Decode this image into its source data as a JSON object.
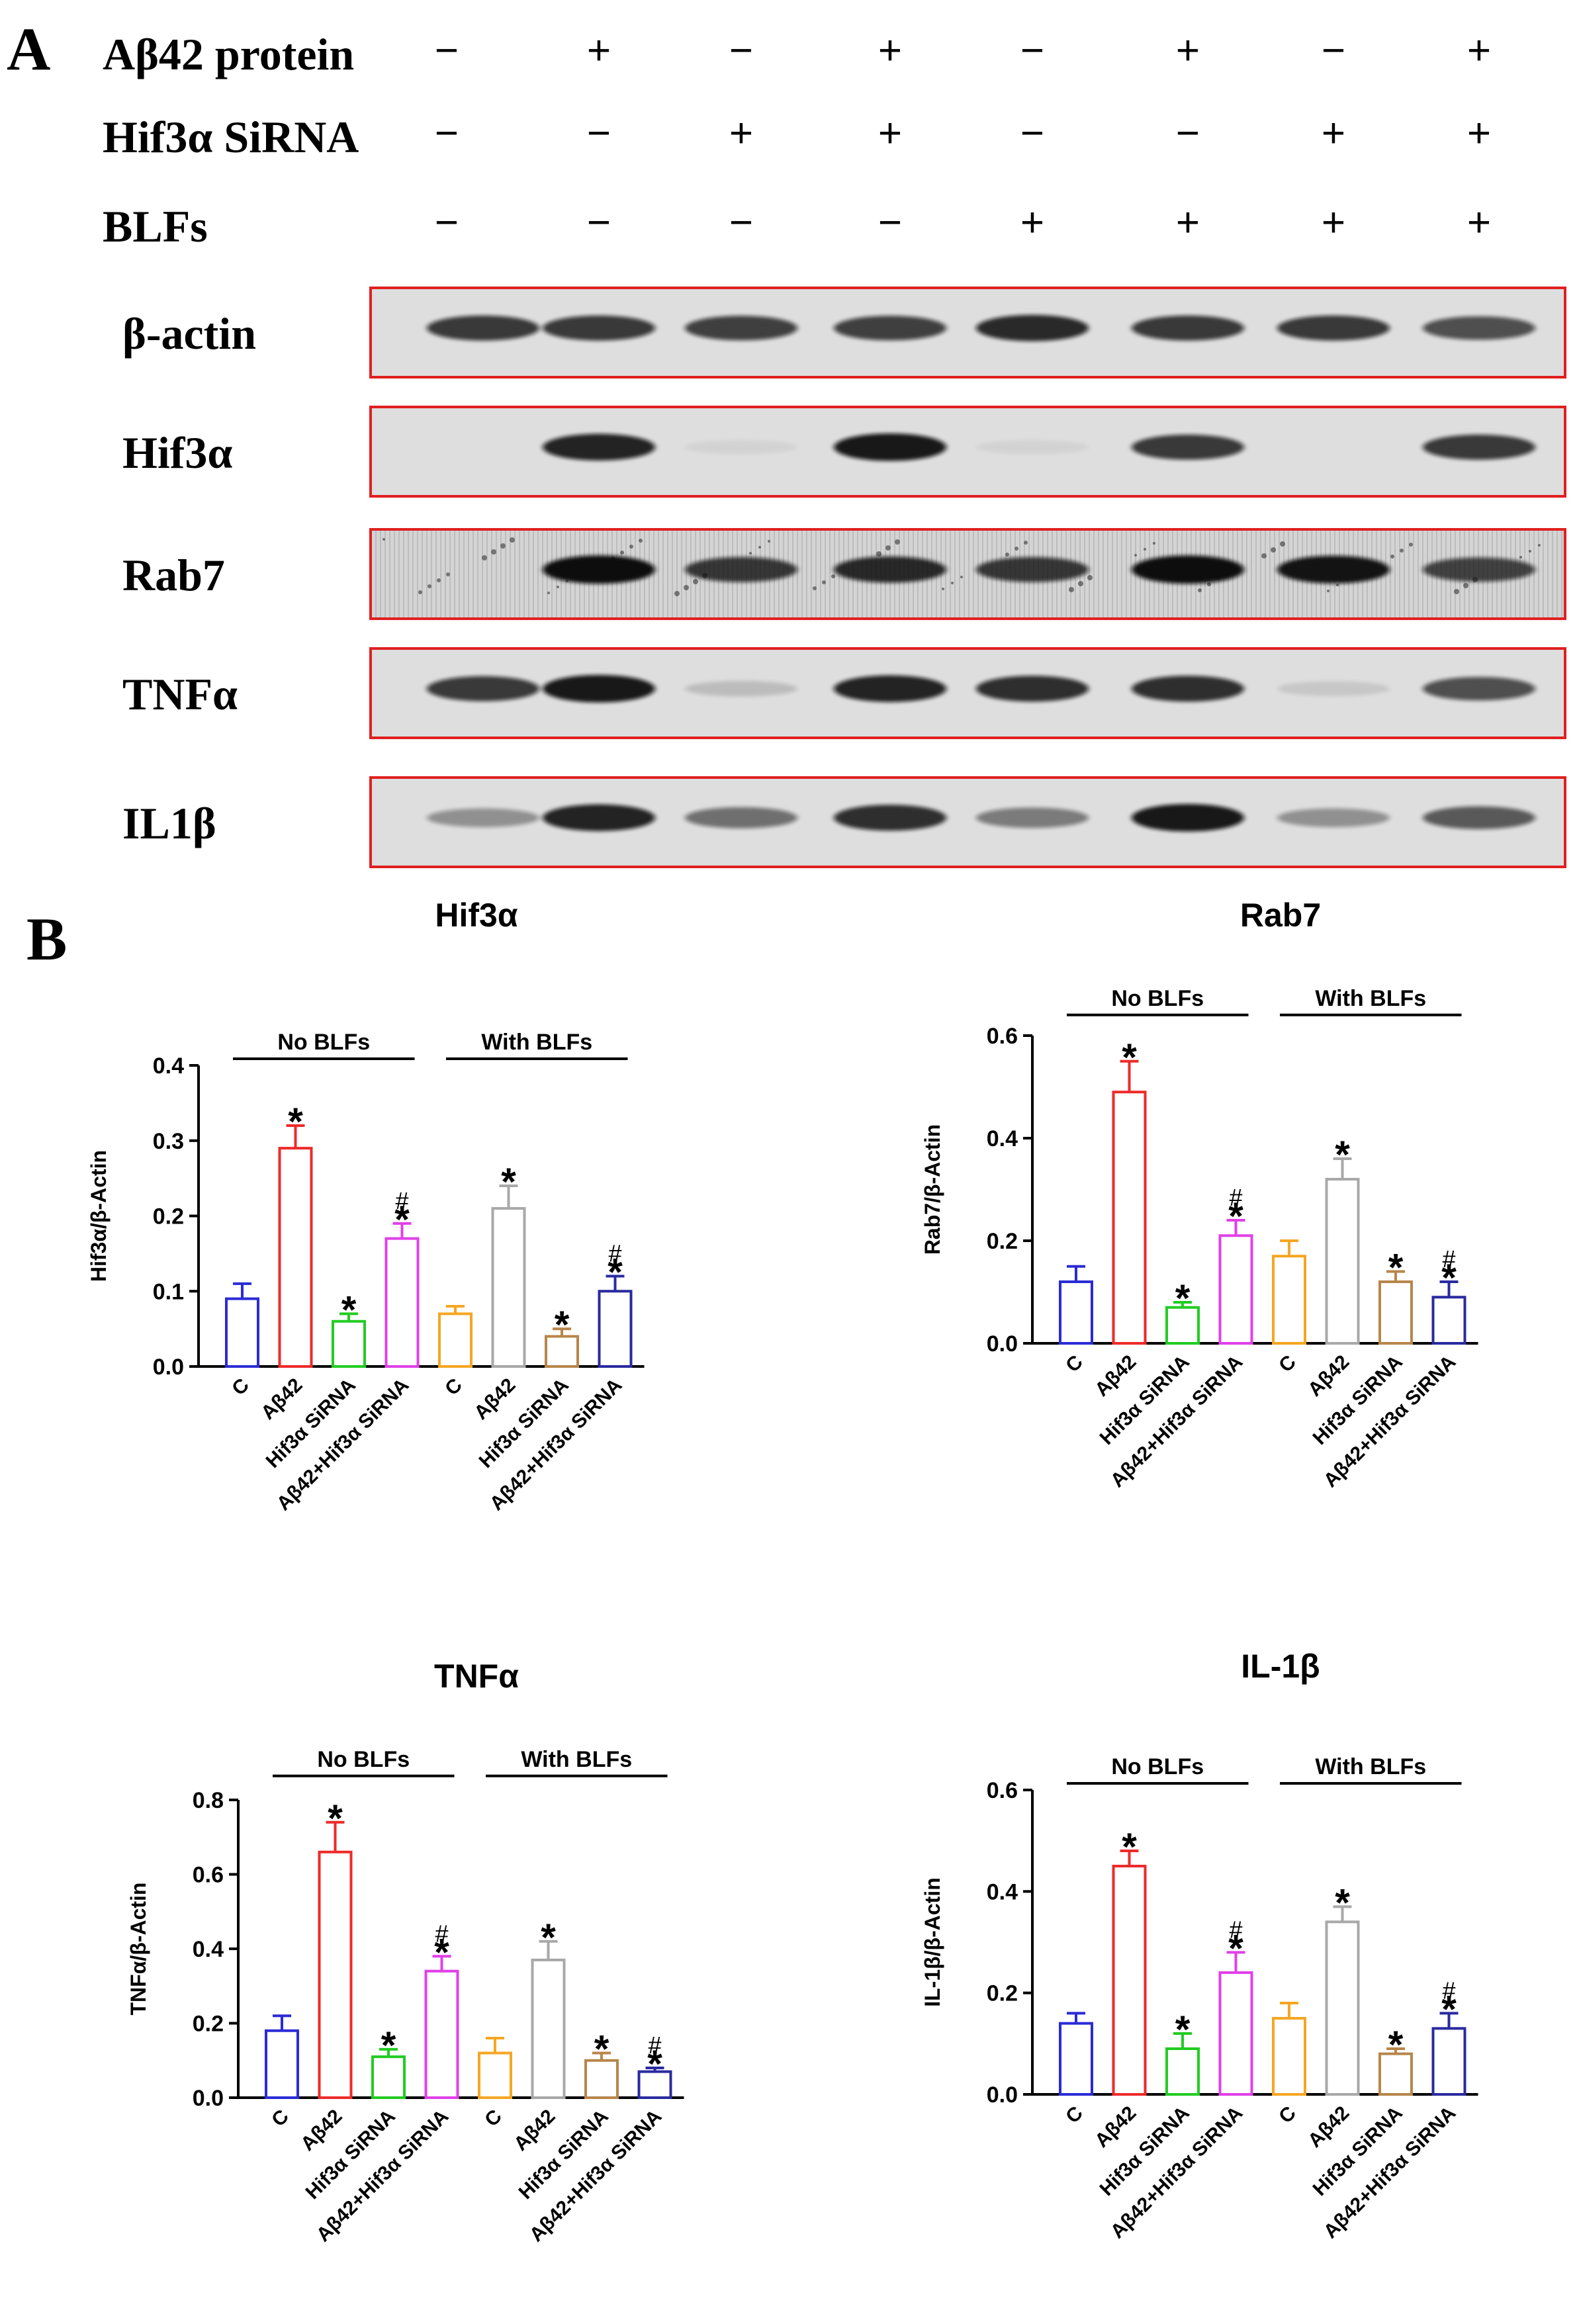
{
  "panel_a": {
    "label": "A",
    "treatments": [
      {
        "name": "Aβ42 protein",
        "signs": [
          "−",
          "+",
          "−",
          "+",
          "−",
          "+",
          "−",
          "+"
        ]
      },
      {
        "name": "Hif3α SiRNA",
        "signs": [
          "−",
          "−",
          "+",
          "+",
          "−",
          "−",
          "+",
          "+"
        ]
      },
      {
        "name": "BLFs",
        "signs": [
          "−",
          "−",
          "−",
          "−",
          "+",
          "+",
          "+",
          "+"
        ]
      }
    ],
    "blots": [
      {
        "name": "β-actin",
        "intensity": [
          0.75,
          0.75,
          0.72,
          0.72,
          0.82,
          0.75,
          0.75,
          0.65
        ],
        "speckled": false
      },
      {
        "name": "Hif3α",
        "intensity": [
          0.0,
          0.85,
          0.05,
          0.9,
          0.05,
          0.75,
          0.0,
          0.75
        ],
        "speckled": false
      },
      {
        "name": "Rab7",
        "intensity": [
          0.0,
          0.95,
          0.75,
          0.82,
          0.75,
          0.95,
          0.92,
          0.7
        ],
        "speckled": true
      },
      {
        "name": "TNFα",
        "intensity": [
          0.75,
          0.9,
          0.15,
          0.85,
          0.8,
          0.8,
          0.1,
          0.65
        ],
        "speckled": false
      },
      {
        "name": "IL1β",
        "intensity": [
          0.35,
          0.85,
          0.5,
          0.8,
          0.45,
          0.9,
          0.35,
          0.6
        ],
        "speckled": false
      }
    ],
    "colors": {
      "frame": "#e02020",
      "blot_bg": "#dedede",
      "band": "#111111"
    }
  },
  "panel_b": {
    "label": "B"
  },
  "chart_data": [
    {
      "type": "bar",
      "title": "Hif3α",
      "ylabel": "Hif3α/β-Actin",
      "ylim": [
        0,
        0.4
      ],
      "yticks": [
        "0.0",
        "0.1",
        "0.2",
        "0.3",
        "0.4"
      ],
      "group_labels": [
        "No BLFs",
        "With BLFs"
      ],
      "categories": [
        "C",
        "Aβ42",
        "Hif3α SiRNA",
        "Aβ42+Hif3α SiRNA",
        "C",
        "Aβ42",
        "Hif3α SiRNA",
        "Aβ42+Hif3α SiRNA"
      ],
      "values": [
        0.09,
        0.29,
        0.06,
        0.17,
        0.07,
        0.21,
        0.04,
        0.1
      ],
      "errors": [
        0.02,
        0.03,
        0.01,
        0.02,
        0.01,
        0.03,
        0.01,
        0.02
      ],
      "marks": [
        "",
        "*",
        "*",
        "#*",
        "",
        "*",
        "*",
        "#*"
      ],
      "colors": [
        "#2b2bd6",
        "#ee2a2a",
        "#22cc22",
        "#e040e8",
        "#f5a623",
        "#a8a8a8",
        "#b8864b",
        "#2a2aa0"
      ]
    },
    {
      "type": "bar",
      "title": "Rab7",
      "ylabel": "Rab7/β-Actin",
      "ylim": [
        0,
        0.6
      ],
      "yticks": [
        "0.0",
        "0.2",
        "0.4",
        "0.6"
      ],
      "group_labels": [
        "No BLFs",
        "With BLFs"
      ],
      "categories": [
        "C",
        "Aβ42",
        "Hif3α SiRNA",
        "Aβ42+Hif3α SiRNA",
        "C",
        "Aβ42",
        "Hif3α SiRNA",
        "Aβ42+Hif3α SiRNA"
      ],
      "values": [
        0.12,
        0.49,
        0.07,
        0.21,
        0.17,
        0.32,
        0.12,
        0.09
      ],
      "errors": [
        0.03,
        0.06,
        0.01,
        0.03,
        0.03,
        0.04,
        0.02,
        0.03
      ],
      "marks": [
        "",
        "*",
        "*",
        "#*",
        "",
        "*",
        "*",
        "#*"
      ],
      "colors": [
        "#2b2bd6",
        "#ee2a2a",
        "#22cc22",
        "#e040e8",
        "#f5a623",
        "#a8a8a8",
        "#b8864b",
        "#2a2aa0"
      ]
    },
    {
      "type": "bar",
      "title": "TNFα",
      "ylabel": "TNFα/β-Actin",
      "ylim": [
        0,
        0.8
      ],
      "yticks": [
        "0.0",
        "0.2",
        "0.4",
        "0.6",
        "0.8"
      ],
      "group_labels": [
        "No BLFs",
        "With BLFs"
      ],
      "categories": [
        "C",
        "Aβ42",
        "Hif3α SiRNA",
        "Aβ42+Hif3α SiRNA",
        "C",
        "Aβ42",
        "Hif3α SiRNA",
        "Aβ42+Hif3α SiRNA"
      ],
      "values": [
        0.18,
        0.66,
        0.11,
        0.34,
        0.12,
        0.37,
        0.1,
        0.07
      ],
      "errors": [
        0.04,
        0.08,
        0.02,
        0.04,
        0.04,
        0.05,
        0.02,
        0.01
      ],
      "marks": [
        "",
        "*",
        "*",
        "#*",
        "",
        "*",
        "*",
        "#*"
      ],
      "colors": [
        "#2b2bd6",
        "#ee2a2a",
        "#22cc22",
        "#e040e8",
        "#f5a623",
        "#a8a8a8",
        "#b8864b",
        "#2a2aa0"
      ]
    },
    {
      "type": "bar",
      "title": "IL-1β",
      "ylabel": "IL-1β/β-Actin",
      "ylim": [
        0,
        0.6
      ],
      "yticks": [
        "0.0",
        "0.2",
        "0.4",
        "0.6"
      ],
      "group_labels": [
        "No BLFs",
        "With BLFs"
      ],
      "categories": [
        "C",
        "Aβ42",
        "Hif3α SiRNA",
        "Aβ42+Hif3α SiRNA",
        "C",
        "Aβ42",
        "Hif3α SiRNA",
        "Aβ42+Hif3α SiRNA"
      ],
      "values": [
        0.14,
        0.45,
        0.09,
        0.24,
        0.15,
        0.34,
        0.08,
        0.13
      ],
      "errors": [
        0.02,
        0.03,
        0.03,
        0.04,
        0.03,
        0.03,
        0.01,
        0.03
      ],
      "marks": [
        "",
        "*",
        "*",
        "#*",
        "",
        "*",
        "*",
        "#*"
      ],
      "colors": [
        "#2b2bd6",
        "#ee2a2a",
        "#22cc22",
        "#e040e8",
        "#f5a623",
        "#a8a8a8",
        "#b8864b",
        "#2a2aa0"
      ]
    }
  ]
}
